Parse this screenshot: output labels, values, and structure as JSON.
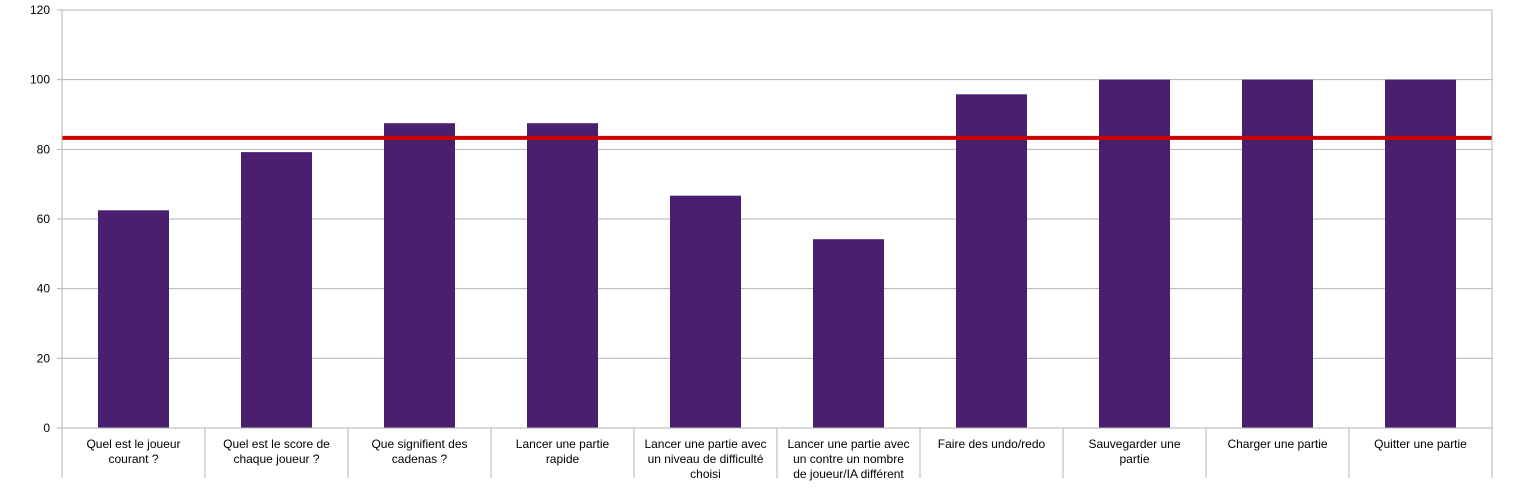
{
  "chart_data": {
    "type": "bar",
    "categories": [
      [
        "Quel est le joueur",
        "courant ?"
      ],
      [
        "Quel est le score de",
        "chaque joueur ?"
      ],
      [
        "Que signifient des",
        "cadenas ?"
      ],
      [
        "Lancer une partie",
        "rapide"
      ],
      [
        "Lancer une partie avec",
        "un niveau de difficulté",
        "choisi"
      ],
      [
        "Lancer une partie avec",
        "un contre un nombre",
        "de joueur/IA différent"
      ],
      [
        "Faire des undo/redo"
      ],
      [
        "Sauvegarder une",
        "partie"
      ],
      [
        "Charger une partie"
      ],
      [
        "Quitter une partie"
      ]
    ],
    "values": [
      62.5,
      79.2,
      87.5,
      87.5,
      66.7,
      54.2,
      95.8,
      100,
      100,
      100
    ],
    "reference_line": 83.3,
    "ylim": [
      0,
      120
    ],
    "yticks": [
      "0",
      "20",
      "40",
      "60",
      "80",
      "100",
      "120"
    ],
    "grid": true,
    "legend": "none"
  },
  "colors": {
    "bar": "#4b1f6f",
    "reference_line": "#cc0000",
    "grid": "#b3b3b3",
    "axis": "#b3b3b3",
    "text": "#000000"
  }
}
